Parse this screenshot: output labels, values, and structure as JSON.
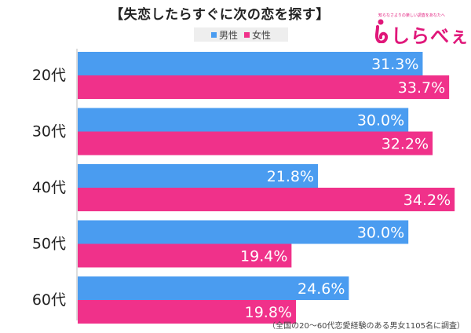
{
  "title": "【失恋したらすぐに次の恋を探す】",
  "legend": {
    "male": "男性",
    "female": "女性"
  },
  "logo": {
    "tagline": "知らなさよりの楽しい調査をあなたへ",
    "name": "しらべぇ"
  },
  "footnote": "（全国の20〜60代恋愛経験のある男女1105名に調査）",
  "colors": {
    "male": "#4a9cf0",
    "female": "#f0318a"
  },
  "chart_data": {
    "type": "bar",
    "orientation": "horizontal",
    "title": "【失恋したらすぐに次の恋を探す】",
    "categories": [
      "20代",
      "30代",
      "40代",
      "50代",
      "60代"
    ],
    "series": [
      {
        "name": "男性",
        "values": [
          31.3,
          30.0,
          21.8,
          30.0,
          24.6
        ],
        "labels": [
          "31.3%",
          "30.0%",
          "21.8%",
          "30.0%",
          "24.6%"
        ]
      },
      {
        "name": "女性",
        "values": [
          33.7,
          32.2,
          34.2,
          19.4,
          19.8
        ],
        "labels": [
          "33.7%",
          "32.2%",
          "34.2%",
          "19.4%",
          "19.8%"
        ]
      }
    ],
    "xlim": [
      0,
      35
    ],
    "legend_position": "top"
  }
}
